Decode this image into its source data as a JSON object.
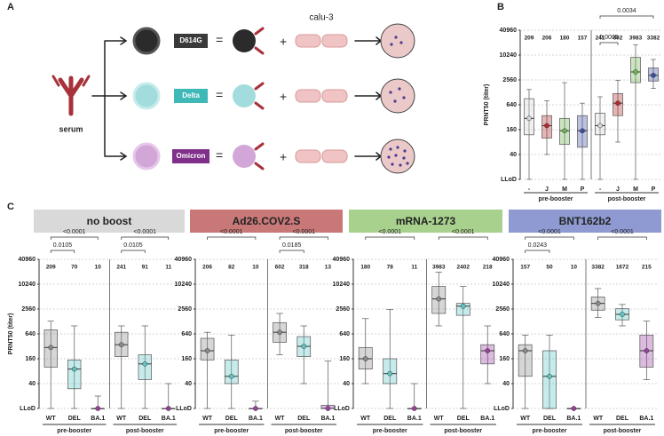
{
  "figure": {
    "panel_labels": [
      "A",
      "B",
      "C"
    ]
  },
  "diagram": {
    "serum": "serum",
    "variants": [
      "D614G",
      "Delta",
      "Omicron"
    ],
    "cell_line": "calu-3",
    "equals": "=",
    "plus": "+"
  },
  "chart_data": [
    {
      "type": "box",
      "ylabel": "PRNT50 (titer)",
      "log": true,
      "grid": true,
      "ylim": [
        10,
        40960
      ],
      "yticks": [
        {
          "value": 10,
          "label": "LLoD"
        },
        40,
        160,
        640,
        2560,
        10240,
        40960
      ],
      "categories": [
        "-",
        "J",
        "M",
        "P",
        "-",
        "J",
        "M",
        "P"
      ],
      "groups": [
        "pre-booster",
        "post-booster"
      ],
      "colors": [
        "#d4d4d4",
        "#b5282c",
        "#6db34f",
        "#3b4ea3",
        "#d4d4d4",
        "#b5282c",
        "#6db34f",
        "#3b4ea3"
      ],
      "geometric_means": [
        209,
        206,
        180,
        157,
        241,
        602,
        3983,
        3382
      ],
      "comparisons": {
        "pre_booster": [],
        "post_booster": [
          "0.0034",
          "0.0005"
        ]
      },
      "boxes": [
        {
          "min": 10,
          "q1": 120,
          "median": 300,
          "q3": 900,
          "max": 1500
        },
        {
          "min": 40,
          "q1": 100,
          "median": 200,
          "q3": 350,
          "max": 800
        },
        {
          "min": 10,
          "q1": 70,
          "median": 150,
          "q3": 300,
          "max": 2200
        },
        {
          "min": 10,
          "q1": 60,
          "median": 150,
          "q3": 350,
          "max": 700
        },
        {
          "min": 10,
          "q1": 120,
          "median": 200,
          "q3": 400,
          "max": 1000
        },
        {
          "min": 80,
          "q1": 350,
          "median": 700,
          "q3": 1200,
          "max": 2500
        },
        {
          "min": 10,
          "q1": 2200,
          "median": 4000,
          "q3": 9000,
          "max": 18000
        },
        {
          "min": 1600,
          "q1": 2400,
          "median": 3300,
          "q3": 5000,
          "max": 8000
        }
      ]
    },
    {
      "type": "box",
      "title": "no boost",
      "header_color": "#d9d9d9",
      "ylabel": "PRNT50 (titer)",
      "log": true,
      "grid": true,
      "ylim": [
        10,
        40960
      ],
      "yticks": [
        {
          "value": 10,
          "label": "LLoD"
        },
        40,
        160,
        640,
        2560,
        10240,
        40960
      ],
      "categories": [
        "WT",
        "DEL",
        "BA.1",
        "WT",
        "DEL",
        "BA.1"
      ],
      "groups": [
        "pre-booster",
        "post-booster"
      ],
      "colors": [
        "#8a8a8a",
        "#5ec4c4",
        "#9b3fa0",
        "#8a8a8a",
        "#5ec4c4",
        "#9b3fa0"
      ],
      "geometric_means": [
        209,
        70,
        10,
        241,
        91,
        11
      ],
      "comparisons": {
        "pre_booster": [
          "<0.0001",
          "0.0105"
        ],
        "post_booster": [
          "<0.0001",
          "0.0105"
        ]
      },
      "boxes": [
        {
          "min": 10,
          "q1": 100,
          "median": 300,
          "q3": 800,
          "max": 1300
        },
        {
          "min": 10,
          "q1": 30,
          "median": 90,
          "q3": 150,
          "max": 1000
        },
        {
          "min": 10,
          "q1": 10,
          "median": 10,
          "q3": 10,
          "max": 20
        },
        {
          "min": 10,
          "q1": 180,
          "median": 350,
          "q3": 700,
          "max": 1000
        },
        {
          "min": 10,
          "q1": 50,
          "median": 120,
          "q3": 200,
          "max": 1000
        },
        {
          "min": 10,
          "q1": 10,
          "median": 10,
          "q3": 10,
          "max": 40
        }
      ]
    },
    {
      "type": "box",
      "title": "Ad26.COV2.S",
      "header_color": "#c97878",
      "log": true,
      "grid": true,
      "ylim": [
        10,
        40960
      ],
      "yticks": [
        {
          "value": 10,
          "label": "LLoD"
        },
        40,
        160,
        640,
        2560,
        10240,
        40960
      ],
      "categories": [
        "WT",
        "DEL",
        "BA.1",
        "WT",
        "DEL",
        "BA.1"
      ],
      "groups": [
        "pre-booster",
        "post-booster"
      ],
      "colors": [
        "#8a8a8a",
        "#5ec4c4",
        "#9b3fa0",
        "#8a8a8a",
        "#5ec4c4",
        "#9b3fa0"
      ],
      "geometric_means": [
        206,
        82,
        10,
        602,
        318,
        13
      ],
      "comparisons": {
        "pre_booster": [
          "<0.0001"
        ],
        "post_booster": [
          "<0.0001",
          "0.0185"
        ]
      },
      "boxes": [
        {
          "min": 10,
          "q1": 150,
          "median": 250,
          "q3": 500,
          "max": 700
        },
        {
          "min": 10,
          "q1": 40,
          "median": 60,
          "q3": 150,
          "max": 600
        },
        {
          "min": 10,
          "q1": 10,
          "median": 10,
          "q3": 10,
          "max": 15
        },
        {
          "min": 200,
          "q1": 400,
          "median": 700,
          "q3": 1200,
          "max": 2000
        },
        {
          "min": 40,
          "q1": 180,
          "median": 320,
          "q3": 550,
          "max": 1000
        },
        {
          "min": 10,
          "q1": 10,
          "median": 10,
          "q3": 12,
          "max": 140
        }
      ]
    },
    {
      "type": "box",
      "title": "mRNA-1273",
      "header_color": "#a9d18e",
      "log": true,
      "grid": true,
      "ylim": [
        10,
        40960
      ],
      "yticks": [
        {
          "value": 10,
          "label": "LLoD"
        },
        40,
        160,
        640,
        2560,
        10240,
        40960
      ],
      "categories": [
        "WT",
        "DEL",
        "BA.1",
        "WT",
        "DEL",
        "BA.1"
      ],
      "groups": [
        "pre-booster",
        "post-booster"
      ],
      "colors": [
        "#8a8a8a",
        "#5ec4c4",
        "#9b3fa0",
        "#8a8a8a",
        "#5ec4c4",
        "#9b3fa0"
      ],
      "geometric_means": [
        180,
        78,
        11,
        3983,
        2402,
        218
      ],
      "comparisons": {
        "pre_booster": [
          "<0.0001"
        ],
        "post_booster": [
          "<0.0001"
        ]
      },
      "boxes": [
        {
          "min": 40,
          "q1": 90,
          "median": 160,
          "q3": 300,
          "max": 1500
        },
        {
          "min": 10,
          "q1": 40,
          "median": 70,
          "q3": 160,
          "max": 2500
        },
        {
          "min": 10,
          "q1": 10,
          "median": 10,
          "q3": 10,
          "max": 40
        },
        {
          "min": 1000,
          "q1": 2000,
          "median": 4500,
          "q3": 9000,
          "max": 20000
        },
        {
          "min": 10,
          "q1": 1800,
          "median": 3000,
          "q3": 3500,
          "max": 9000
        },
        {
          "min": 40,
          "q1": 120,
          "median": 250,
          "q3": 350,
          "max": 1000
        }
      ]
    },
    {
      "type": "box",
      "title": "BNT162b2",
      "header_color": "#8e9ad1",
      "log": true,
      "grid": true,
      "ylim": [
        10,
        40960
      ],
      "yticks": [
        {
          "value": 10,
          "label": "LLoD"
        },
        40,
        160,
        640,
        2560,
        10240,
        40960
      ],
      "categories": [
        "WT",
        "DEL",
        "BA.1",
        "WT",
        "DEL",
        "BA.1"
      ],
      "groups": [
        "pre-booster",
        "post-booster"
      ],
      "colors": [
        "#8a8a8a",
        "#5ec4c4",
        "#9b3fa0",
        "#8a8a8a",
        "#5ec4c4",
        "#9b3fa0"
      ],
      "geometric_means": [
        157,
        50,
        10,
        3382,
        1672,
        215
      ],
      "comparisons": {
        "pre_booster": [
          "<0.0001",
          "0.0243"
        ],
        "post_booster": [
          "<0.0001"
        ]
      },
      "boxes": [
        {
          "min": 10,
          "q1": 60,
          "median": 250,
          "q3": 350,
          "max": 600
        },
        {
          "min": 10,
          "q1": 10,
          "median": 60,
          "q3": 250,
          "max": 600
        },
        {
          "min": 10,
          "q1": 10,
          "median": 10,
          "q3": 10,
          "max": 10
        },
        {
          "min": 1600,
          "q1": 2400,
          "median": 3500,
          "q3": 5000,
          "max": 8000
        },
        {
          "min": 1000,
          "q1": 1400,
          "median": 1900,
          "q3": 2600,
          "max": 3300
        },
        {
          "min": 50,
          "q1": 100,
          "median": 250,
          "q3": 600,
          "max": 1300
        }
      ]
    }
  ]
}
